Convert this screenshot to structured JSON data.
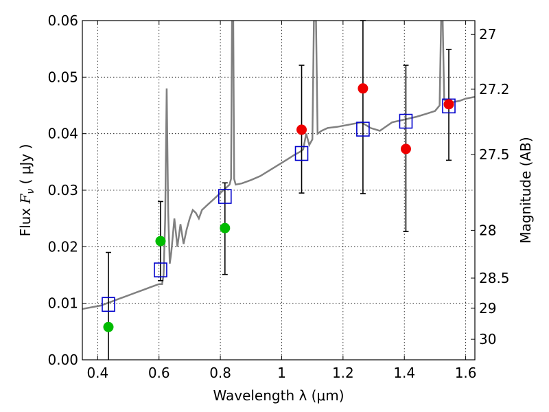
{
  "chart_data": {
    "type": "scatter",
    "title": "",
    "xlabel": "Wavelength  λ (μm)",
    "ylabel_prefix": "Flux ",
    "ylabel_symbol": "F",
    "ylabel_subscript": "ν",
    "ylabel_suffix": " ( μJy )",
    "y2label": "Magnitude (AB)",
    "xlim": [
      0.35,
      1.63
    ],
    "ylim": [
      0.0,
      0.06
    ],
    "grid": true,
    "x_ticks": [
      {
        "value": 0.4,
        "label": "0.4"
      },
      {
        "value": 0.6,
        "label": "0.6"
      },
      {
        "value": 0.8,
        "label": "0.8"
      },
      {
        "value": 1.0,
        "label": "1"
      },
      {
        "value": 1.2,
        "label": "1.2"
      },
      {
        "value": 1.4,
        "label": "1.4"
      },
      {
        "value": 1.6,
        "label": "1.6"
      }
    ],
    "y_ticks": [
      {
        "value": 0.0,
        "label": "0.00"
      },
      {
        "value": 0.01,
        "label": "0.01"
      },
      {
        "value": 0.02,
        "label": "0.02"
      },
      {
        "value": 0.03,
        "label": "0.03"
      },
      {
        "value": 0.04,
        "label": "0.04"
      },
      {
        "value": 0.05,
        "label": "0.05"
      },
      {
        "value": 0.06,
        "label": "0.06"
      }
    ],
    "y2_ticks": [
      {
        "mag": 27,
        "label": "27"
      },
      {
        "mag": 27.2,
        "label": "27.2"
      },
      {
        "mag": 27.5,
        "label": "27.5"
      },
      {
        "mag": 28,
        "label": "28"
      },
      {
        "mag": 28.5,
        "label": "28.5"
      },
      {
        "mag": 29,
        "label": "29"
      },
      {
        "mag": 30,
        "label": "30"
      }
    ],
    "colors": {
      "spectrum": "#808080",
      "model": "#0000cc",
      "green": "#00bb00",
      "red": "#ee0000",
      "errorbar": "#000000"
    },
    "spectrum": [
      [
        0.35,
        0.009
      ],
      [
        0.37,
        0.0092
      ],
      [
        0.39,
        0.0094
      ],
      [
        0.41,
        0.0096
      ],
      [
        0.43,
        0.01
      ],
      [
        0.45,
        0.0104
      ],
      [
        0.47,
        0.0108
      ],
      [
        0.49,
        0.0112
      ],
      [
        0.51,
        0.0116
      ],
      [
        0.53,
        0.012
      ],
      [
        0.55,
        0.0124
      ],
      [
        0.57,
        0.0128
      ],
      [
        0.59,
        0.0132
      ],
      [
        0.6,
        0.0134
      ],
      [
        0.61,
        0.0134
      ],
      [
        0.615,
        0.015
      ],
      [
        0.62,
        0.025
      ],
      [
        0.625,
        0.048
      ],
      [
        0.63,
        0.026
      ],
      [
        0.635,
        0.017
      ],
      [
        0.64,
        0.019
      ],
      [
        0.65,
        0.025
      ],
      [
        0.66,
        0.02
      ],
      [
        0.67,
        0.024
      ],
      [
        0.68,
        0.0205
      ],
      [
        0.69,
        0.023
      ],
      [
        0.7,
        0.025
      ],
      [
        0.71,
        0.0265
      ],
      [
        0.72,
        0.026
      ],
      [
        0.73,
        0.025
      ],
      [
        0.74,
        0.0265
      ],
      [
        0.76,
        0.0275
      ],
      [
        0.78,
        0.0285
      ],
      [
        0.8,
        0.0295
      ],
      [
        0.81,
        0.03
      ],
      [
        0.82,
        0.0305
      ],
      [
        0.83,
        0.031
      ],
      [
        0.835,
        0.032
      ],
      [
        0.838,
        0.06
      ],
      [
        0.842,
        0.06
      ],
      [
        0.845,
        0.032
      ],
      [
        0.85,
        0.031
      ],
      [
        0.87,
        0.0312
      ],
      [
        0.9,
        0.0318
      ],
      [
        0.93,
        0.0325
      ],
      [
        0.96,
        0.0335
      ],
      [
        0.99,
        0.0345
      ],
      [
        1.02,
        0.0355
      ],
      [
        1.04,
        0.0362
      ],
      [
        1.06,
        0.0368
      ],
      [
        1.07,
        0.0372
      ],
      [
        1.08,
        0.04
      ],
      [
        1.09,
        0.038
      ],
      [
        1.1,
        0.039
      ],
      [
        1.105,
        0.06
      ],
      [
        1.112,
        0.06
      ],
      [
        1.117,
        0.04
      ],
      [
        1.13,
        0.0405
      ],
      [
        1.15,
        0.041
      ],
      [
        1.18,
        0.0412
      ],
      [
        1.21,
        0.0415
      ],
      [
        1.24,
        0.0418
      ],
      [
        1.26,
        0.042
      ],
      [
        1.29,
        0.041
      ],
      [
        1.32,
        0.0405
      ],
      [
        1.36,
        0.042
      ],
      [
        1.4,
        0.0425
      ],
      [
        1.44,
        0.043
      ],
      [
        1.47,
        0.0435
      ],
      [
        1.5,
        0.044
      ],
      [
        1.515,
        0.045
      ],
      [
        1.52,
        0.06
      ],
      [
        1.525,
        0.06
      ],
      [
        1.53,
        0.046
      ],
      [
        1.55,
        0.0455
      ],
      [
        1.58,
        0.0458
      ],
      [
        1.6,
        0.0462
      ],
      [
        1.63,
        0.0465
      ]
    ],
    "model_points": [
      {
        "x": 0.435,
        "y": 0.0098
      },
      {
        "x": 0.605,
        "y": 0.0159
      },
      {
        "x": 0.815,
        "y": 0.0289
      },
      {
        "x": 1.065,
        "y": 0.0365
      },
      {
        "x": 1.265,
        "y": 0.0408
      },
      {
        "x": 1.405,
        "y": 0.0422
      },
      {
        "x": 1.545,
        "y": 0.0449
      }
    ],
    "observed_green": [
      {
        "x": 0.435,
        "y": 0.0058,
        "ylow": 0.0,
        "yhigh": 0.019
      },
      {
        "x": 0.605,
        "y": 0.021,
        "ylow": 0.014,
        "yhigh": 0.028
      },
      {
        "x": 0.815,
        "y": 0.0233,
        "ylow": 0.0151,
        "yhigh": 0.0313
      }
    ],
    "observed_red": [
      {
        "x": 1.065,
        "y": 0.0407,
        "ylow": 0.0295,
        "yhigh": 0.0521
      },
      {
        "x": 1.265,
        "y": 0.048,
        "ylow": 0.0294,
        "yhigh": 0.06
      },
      {
        "x": 1.405,
        "y": 0.0373,
        "ylow": 0.0227,
        "yhigh": 0.0521
      },
      {
        "x": 1.545,
        "y": 0.0452,
        "ylow": 0.0353,
        "yhigh": 0.0549
      }
    ]
  }
}
